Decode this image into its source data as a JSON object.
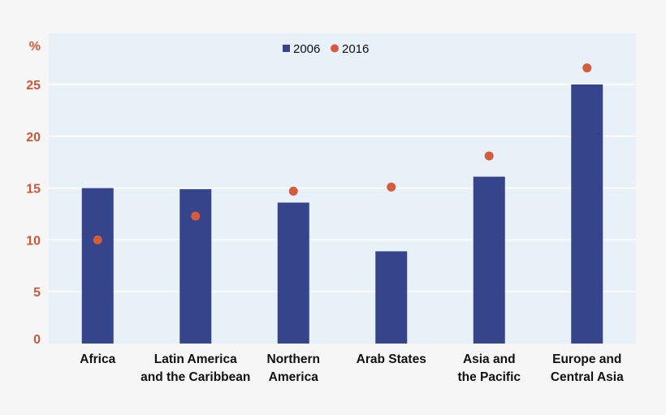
{
  "chart_data": {
    "type": "bar",
    "title": "",
    "ylabel": "%",
    "xlabel": "",
    "ylim": [
      0,
      30
    ],
    "yticks": [
      "0",
      "5",
      "10",
      "15",
      "20",
      "25"
    ],
    "grid": true,
    "legend_placement": "top-center",
    "categories": [
      [
        "Africa"
      ],
      [
        "Latin America",
        "and the Caribbean"
      ],
      [
        "Northern",
        "America"
      ],
      [
        "Arab States"
      ],
      [
        "Asia and",
        "the Pacific"
      ],
      [
        "Europe and",
        "Central Asia"
      ]
    ],
    "series": [
      {
        "name": "2006",
        "mark": "bar",
        "color": "#36448b",
        "values": [
          15.0,
          14.9,
          13.6,
          8.9,
          16.1,
          25.0
        ]
      },
      {
        "name": "2016",
        "mark": "dot",
        "color": "#d45c3a",
        "values": [
          10.0,
          12.3,
          14.7,
          15.1,
          18.1,
          26.6
        ]
      }
    ],
    "colors": {
      "plot_background": "#e8f0f8",
      "page_background": "#f6f6f6",
      "tick_labels": "#c9573a"
    }
  }
}
